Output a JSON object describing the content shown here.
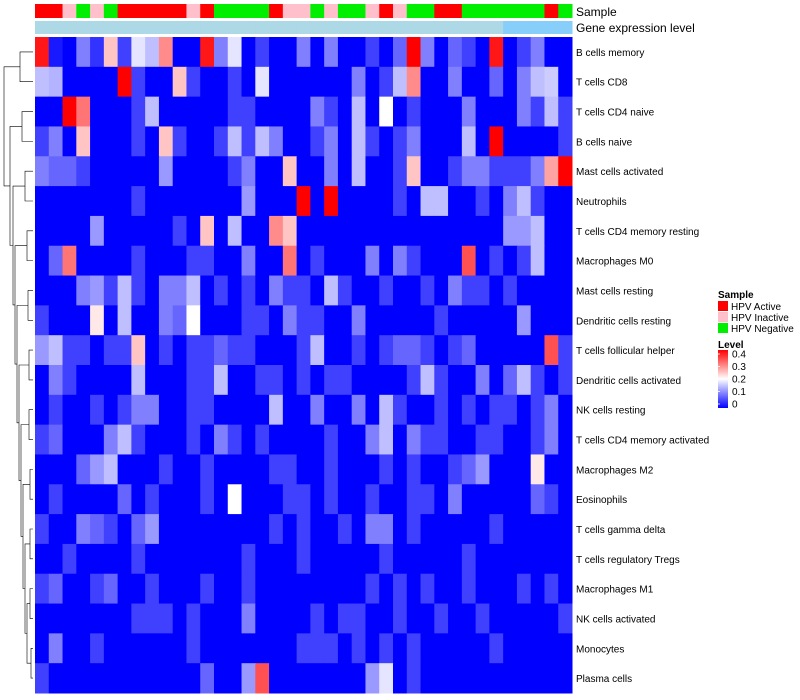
{
  "chart_data": {
    "type": "heatmap",
    "annotation_tracks": [
      {
        "name": "Sample",
        "values": [
          "Active",
          "Active",
          "Inactive",
          "Negative",
          "Inactive",
          "Negative",
          "Active",
          "Active",
          "Active",
          "Active",
          "Active",
          "Inactive",
          "Active",
          "Negative",
          "Negative",
          "Negative",
          "Negative",
          "Active",
          "Inactive",
          "Inactive",
          "Negative",
          "Inactive",
          "Negative",
          "Negative",
          "Inactive",
          "Active",
          "Inactive",
          "Negative",
          "Negative",
          "Active",
          "Active",
          "Negative",
          "Negative",
          "Negative",
          "Negative",
          "Negative",
          "Negative",
          "Active",
          "Negative"
        ]
      },
      {
        "name": "Gene expression level",
        "values": [
          "light",
          "light",
          "light",
          "light",
          "light",
          "light",
          "light",
          "light",
          "light",
          "light",
          "light",
          "light",
          "light",
          "light",
          "light",
          "light",
          "light",
          "light",
          "light",
          "light",
          "light",
          "light",
          "light",
          "light",
          "light",
          "light",
          "light",
          "light",
          "light",
          "light",
          "light",
          "light",
          "light",
          "light",
          "mid",
          "mid",
          "mid",
          "mid",
          "mid"
        ]
      }
    ],
    "rows": [
      "B cells memory",
      "T cells CD8",
      "T cells CD4 naive",
      "B cells naive",
      "Mast cells activated",
      "Neutrophils",
      "T cells CD4 memory resting",
      "Macrophages M0",
      "Mast cells resting",
      "Dendritic cells resting",
      "T cells follicular helper",
      "Dendritic cells activated",
      "NK cells resting",
      "T cells CD4 memory activated",
      "Macrophages M2",
      "Eosinophils",
      "T cells gamma delta",
      "T cells regulatory  Tregs",
      "Macrophages M1",
      "NK cells activated",
      "Monocytes",
      "Plasma cells"
    ],
    "values": [
      [
        0.4,
        0.02,
        0.0,
        0.1,
        0.04,
        0.25,
        0.05,
        0.18,
        0.15,
        0.3,
        0.0,
        0.0,
        0.4,
        0.1,
        0.18,
        0.0,
        0.05,
        0.0,
        0.0,
        0.1,
        0.0,
        0.1,
        0.0,
        0.0,
        0.05,
        0.0,
        0.08,
        0.42,
        0.1,
        0.0,
        0.08,
        0.05,
        0.0,
        0.4,
        0.0,
        0.05,
        0.1,
        0.0,
        0.0
      ],
      [
        0.15,
        0.14,
        0.0,
        0.0,
        0.0,
        0.0,
        0.42,
        0.05,
        0.0,
        0.0,
        0.25,
        0.05,
        0.0,
        0.0,
        0.05,
        0.0,
        0.18,
        0.0,
        0.0,
        0.0,
        0.0,
        0.0,
        0.0,
        0.1,
        0.0,
        0.05,
        0.15,
        0.3,
        0.0,
        0.0,
        0.1,
        0.0,
        0.0,
        0.08,
        0.0,
        0.1,
        0.15,
        0.16,
        0.0
      ],
      [
        0.0,
        0.0,
        0.42,
        0.32,
        0.0,
        0.0,
        0.0,
        0.05,
        0.15,
        0.0,
        0.0,
        0.0,
        0.0,
        0.0,
        0.05,
        0.05,
        0.0,
        0.0,
        0.0,
        0.0,
        0.1,
        0.05,
        0.0,
        0.15,
        0.0,
        0.2,
        0.0,
        0.05,
        0.0,
        0.0,
        0.0,
        0.1,
        0.0,
        0.0,
        0.0,
        0.1,
        0.05,
        0.15,
        0.05
      ],
      [
        0.05,
        0.1,
        0.0,
        0.25,
        0.0,
        0.0,
        0.0,
        0.05,
        0.0,
        0.25,
        0.05,
        0.0,
        0.0,
        0.05,
        0.15,
        0.05,
        0.15,
        0.1,
        0.0,
        0.0,
        0.05,
        0.1,
        0.0,
        0.15,
        0.05,
        0.0,
        0.05,
        0.1,
        0.0,
        0.0,
        0.0,
        0.15,
        0.0,
        0.42,
        0.0,
        0.0,
        0.0,
        0.0,
        0.05
      ],
      [
        0.1,
        0.08,
        0.08,
        0.05,
        0.0,
        0.0,
        0.0,
        0.0,
        0.0,
        0.12,
        0.0,
        0.0,
        0.0,
        0.0,
        0.05,
        0.1,
        0.0,
        0.0,
        0.25,
        0.0,
        0.0,
        0.1,
        0.0,
        0.15,
        0.0,
        0.0,
        0.05,
        0.25,
        0.0,
        0.0,
        0.05,
        0.1,
        0.1,
        0.05,
        0.05,
        0.05,
        0.1,
        0.28,
        0.42
      ],
      [
        0.0,
        0.0,
        0.0,
        0.0,
        0.0,
        0.0,
        0.0,
        0.05,
        0.0,
        0.0,
        0.0,
        0.0,
        0.0,
        0.0,
        0.0,
        0.12,
        0.0,
        0.0,
        0.0,
        0.42,
        0.0,
        0.42,
        0.0,
        0.0,
        0.0,
        0.0,
        0.05,
        0.0,
        0.15,
        0.15,
        0.0,
        0.0,
        0.05,
        0.0,
        0.1,
        0.15,
        0.05,
        0.0,
        0.0
      ],
      [
        0.0,
        0.0,
        0.0,
        0.0,
        0.12,
        0.0,
        0.0,
        0.0,
        0.0,
        0.0,
        0.05,
        0.0,
        0.25,
        0.0,
        0.15,
        0.0,
        0.0,
        0.3,
        0.25,
        0.0,
        0.0,
        0.0,
        0.0,
        0.0,
        0.0,
        0.0,
        0.0,
        0.0,
        0.0,
        0.0,
        0.0,
        0.0,
        0.0,
        0.0,
        0.12,
        0.12,
        0.15,
        0.0,
        0.0
      ],
      [
        0.0,
        0.08,
        0.32,
        0.0,
        0.0,
        0.0,
        0.0,
        0.05,
        0.0,
        0.0,
        0.0,
        0.05,
        0.05,
        0.0,
        0.0,
        0.1,
        0.0,
        0.0,
        0.32,
        0.0,
        0.05,
        0.0,
        0.0,
        0.0,
        0.1,
        0.0,
        0.1,
        0.05,
        0.0,
        0.0,
        0.0,
        0.35,
        0.0,
        0.05,
        0.0,
        0.05,
        0.15,
        0.0,
        0.0
      ],
      [
        0.0,
        0.0,
        0.0,
        0.1,
        0.12,
        0.05,
        0.15,
        0.05,
        0.0,
        0.1,
        0.1,
        0.15,
        0.0,
        0.05,
        0.0,
        0.05,
        0.0,
        0.1,
        0.05,
        0.05,
        0.0,
        0.15,
        0.05,
        0.0,
        0.0,
        0.05,
        0.0,
        0.0,
        0.05,
        0.0,
        0.1,
        0.05,
        0.05,
        0.0,
        0.05,
        0.0,
        0.0,
        0.0,
        0.0
      ],
      [
        0.05,
        0.0,
        0.0,
        0.0,
        0.22,
        0.0,
        0.15,
        0.0,
        0.0,
        0.1,
        0.08,
        0.2,
        0.0,
        0.0,
        0.0,
        0.05,
        0.05,
        0.0,
        0.1,
        0.05,
        0.05,
        0.0,
        0.0,
        0.1,
        0.0,
        0.0,
        0.0,
        0.0,
        0.0,
        0.05,
        0.0,
        0.0,
        0.0,
        0.0,
        0.0,
        0.12,
        0.0,
        0.0,
        0.0
      ],
      [
        0.12,
        0.15,
        0.05,
        0.05,
        0.0,
        0.05,
        0.05,
        0.25,
        0.0,
        0.05,
        0.0,
        0.05,
        0.05,
        0.08,
        0.05,
        0.05,
        0.0,
        0.0,
        0.0,
        0.05,
        0.15,
        0.0,
        0.0,
        0.05,
        0.0,
        0.05,
        0.08,
        0.08,
        0.05,
        0.0,
        0.05,
        0.08,
        0.0,
        0.0,
        0.0,
        0.0,
        0.0,
        0.35,
        0.05
      ],
      [
        0.0,
        0.1,
        0.05,
        0.0,
        0.0,
        0.0,
        0.0,
        0.15,
        0.0,
        0.0,
        0.0,
        0.05,
        0.05,
        0.15,
        0.0,
        0.0,
        0.05,
        0.05,
        0.0,
        0.05,
        0.0,
        0.05,
        0.05,
        0.0,
        0.0,
        0.0,
        0.0,
        0.05,
        0.15,
        0.05,
        0.0,
        0.0,
        0.1,
        0.0,
        0.08,
        0.15,
        0.05,
        0.0,
        0.05
      ],
      [
        0.0,
        0.05,
        0.0,
        0.0,
        0.05,
        0.0,
        0.05,
        0.1,
        0.1,
        0.0,
        0.0,
        0.05,
        0.05,
        0.0,
        0.0,
        0.0,
        0.0,
        0.15,
        0.0,
        0.0,
        0.1,
        0.0,
        0.0,
        0.1,
        0.0,
        0.15,
        0.05,
        0.0,
        0.0,
        0.05,
        0.0,
        0.05,
        0.0,
        0.05,
        0.05,
        0.0,
        0.05,
        0.1,
        0.0
      ],
      [
        0.05,
        0.08,
        0.0,
        0.0,
        0.0,
        0.1,
        0.15,
        0.05,
        0.0,
        0.0,
        0.0,
        0.05,
        0.0,
        0.1,
        0.05,
        0.0,
        0.05,
        0.0,
        0.0,
        0.0,
        0.0,
        0.05,
        0.0,
        0.0,
        0.1,
        0.15,
        0.0,
        0.1,
        0.05,
        0.05,
        0.0,
        0.0,
        0.05,
        0.05,
        0.0,
        0.0,
        0.05,
        0.1,
        0.0
      ],
      [
        0.0,
        0.0,
        0.0,
        0.08,
        0.12,
        0.15,
        0.0,
        0.0,
        0.0,
        0.05,
        0.0,
        0.0,
        0.05,
        0.0,
        0.0,
        0.0,
        0.0,
        0.05,
        0.05,
        0.0,
        0.0,
        0.05,
        0.0,
        0.0,
        0.0,
        0.05,
        0.0,
        0.05,
        0.0,
        0.0,
        0.05,
        0.08,
        0.12,
        0.0,
        0.0,
        0.0,
        0.22,
        0.0,
        0.0
      ],
      [
        0.0,
        0.05,
        0.0,
        0.0,
        0.0,
        0.0,
        0.08,
        0.0,
        0.05,
        0.0,
        0.0,
        0.0,
        0.05,
        0.0,
        0.2,
        0.0,
        0.0,
        0.0,
        0.05,
        0.05,
        0.0,
        0.05,
        0.0,
        0.0,
        0.05,
        0.0,
        0.0,
        0.05,
        0.05,
        0.0,
        0.1,
        0.0,
        0.0,
        0.0,
        0.0,
        0.0,
        0.08,
        0.05,
        0.0
      ],
      [
        0.05,
        0.0,
        0.0,
        0.1,
        0.08,
        0.05,
        0.0,
        0.08,
        0.12,
        0.0,
        0.0,
        0.0,
        0.0,
        0.0,
        0.0,
        0.0,
        0.0,
        0.05,
        0.0,
        0.05,
        0.0,
        0.0,
        0.05,
        0.0,
        0.1,
        0.1,
        0.0,
        0.05,
        0.0,
        0.0,
        0.0,
        0.0,
        0.0,
        0.05,
        0.0,
        0.0,
        0.0,
        0.0,
        0.0
      ],
      [
        0.0,
        0.0,
        0.05,
        0.0,
        0.0,
        0.0,
        0.0,
        0.05,
        0.0,
        0.0,
        0.0,
        0.0,
        0.0,
        0.0,
        0.0,
        0.05,
        0.0,
        0.0,
        0.0,
        0.05,
        0.0,
        0.0,
        0.0,
        0.0,
        0.0,
        0.05,
        0.0,
        0.0,
        0.0,
        0.0,
        0.0,
        0.05,
        0.0,
        0.0,
        0.0,
        0.0,
        0.0,
        0.0,
        0.0
      ],
      [
        0.05,
        0.08,
        0.0,
        0.0,
        0.05,
        0.08,
        0.0,
        0.0,
        0.05,
        0.0,
        0.0,
        0.0,
        0.05,
        0.0,
        0.0,
        0.05,
        0.0,
        0.0,
        0.0,
        0.0,
        0.0,
        0.0,
        0.0,
        0.0,
        0.05,
        0.0,
        0.05,
        0.0,
        0.05,
        0.0,
        0.0,
        0.05,
        0.0,
        0.0,
        0.0,
        0.05,
        0.0,
        0.05,
        0.0
      ],
      [
        0.0,
        0.0,
        0.0,
        0.0,
        0.0,
        0.0,
        0.0,
        0.05,
        0.05,
        0.05,
        0.0,
        0.05,
        0.0,
        0.0,
        0.0,
        0.1,
        0.0,
        0.0,
        0.0,
        0.0,
        0.05,
        0.0,
        0.05,
        0.05,
        0.0,
        0.0,
        0.05,
        0.0,
        0.0,
        0.05,
        0.0,
        0.0,
        0.05,
        0.0,
        0.0,
        0.0,
        0.0,
        0.0,
        0.05
      ],
      [
        0.0,
        0.1,
        0.0,
        0.0,
        0.05,
        0.0,
        0.0,
        0.0,
        0.0,
        0.0,
        0.0,
        0.05,
        0.0,
        0.0,
        0.0,
        0.0,
        0.0,
        0.0,
        0.0,
        0.05,
        0.05,
        0.05,
        0.0,
        0.05,
        0.0,
        0.05,
        0.0,
        0.05,
        0.0,
        0.0,
        0.0,
        0.0,
        0.0,
        0.05,
        0.0,
        0.0,
        0.0,
        0.0,
        0.0
      ],
      [
        0.05,
        0.0,
        0.0,
        0.0,
        0.0,
        0.0,
        0.0,
        0.0,
        0.0,
        0.0,
        0.0,
        0.0,
        0.08,
        0.0,
        0.0,
        0.12,
        0.35,
        0.0,
        0.0,
        0.0,
        0.0,
        0.0,
        0.0,
        0.0,
        0.12,
        0.18,
        0.0,
        0.05,
        0.0,
        0.0,
        0.0,
        0.0,
        0.0,
        0.0,
        0.0,
        0.0,
        0.0,
        0.0,
        0.0
      ]
    ],
    "legend_sample": {
      "title": "Sample",
      "items": [
        {
          "label": "HPV Active",
          "color": "#ff0000"
        },
        {
          "label": "HPV Inactive",
          "color": "#ffc0cb"
        },
        {
          "label": "HPV Negative",
          "color": "#00ee00"
        }
      ]
    },
    "legend_level": {
      "title": "Level",
      "ticks": [
        "0.4",
        "0.3",
        "0.2",
        "0.1",
        "0"
      ]
    },
    "color_scale": {
      "low": "#0000ff",
      "mid": "#ffffff",
      "high": "#ff0000",
      "min": 0,
      "mid_value": 0.2,
      "max": 0.42
    },
    "annotation_colors": {
      "Active": "#ff0000",
      "Inactive": "#ffc0cb",
      "Negative": "#00ee00",
      "light": "#add8e6",
      "mid": "#87cefa"
    }
  }
}
